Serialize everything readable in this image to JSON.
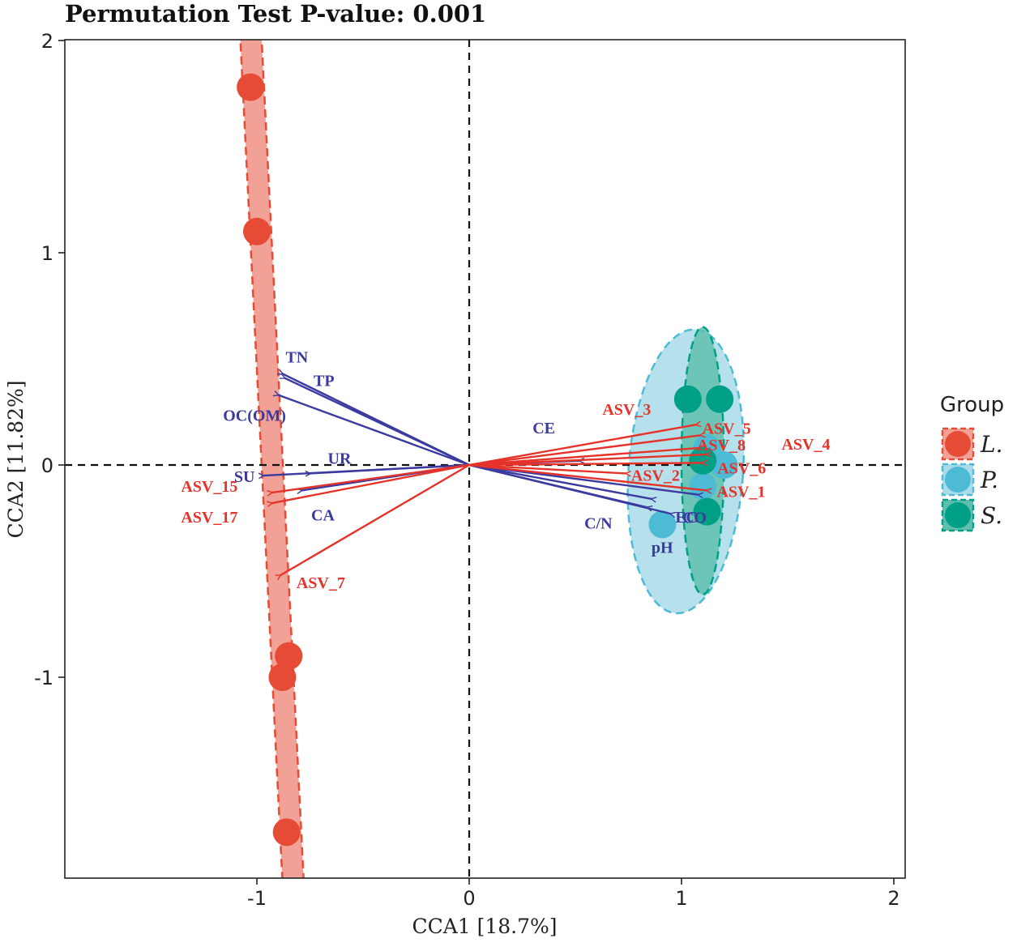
{
  "chart_data": {
    "type": "scatter",
    "title": "Permutation Test P-value: 0.001",
    "xlabel": "CCA1 [18.7%]",
    "ylabel": "CCA2 [11.82%]",
    "xlim": [
      -1.9,
      2.05
    ],
    "ylim": [
      -1.95,
      2.0
    ],
    "xticks": [
      -1,
      0,
      1,
      2
    ],
    "xtick_labels": [
      "-1",
      "0",
      "1",
      "2"
    ],
    "yticks": [
      -1,
      0,
      1,
      2
    ],
    "ytick_labels": [
      "-1",
      "0",
      "1",
      "2"
    ],
    "legend": {
      "title": "Group",
      "position": "right",
      "entries": [
        {
          "label": "L.",
          "color": "#e64b35"
        },
        {
          "label": "P.",
          "color": "#4dbbd5"
        },
        {
          "label": "S.",
          "color": "#00a087"
        }
      ]
    },
    "groups": [
      {
        "name": "L.",
        "color": "#e64b35",
        "fill": "#f1a195",
        "points": [
          [
            -1.03,
            1.78
          ],
          [
            -1.0,
            1.1
          ],
          [
            -0.85,
            -0.9
          ],
          [
            -0.88,
            -1.0
          ],
          [
            -0.86,
            -1.73
          ]
        ]
      },
      {
        "name": "P.",
        "color": "#4dbbd5",
        "fill": "#a9dbe8",
        "points": [
          [
            0.91,
            -0.28
          ],
          [
            1.1,
            -0.1
          ],
          [
            1.2,
            0.0
          ],
          [
            1.12,
            0.08
          ]
        ]
      },
      {
        "name": "S.",
        "color": "#00a087",
        "fill": "#5fbfae",
        "points": [
          [
            1.03,
            0.31
          ],
          [
            1.18,
            0.31
          ],
          [
            1.1,
            0.02
          ],
          [
            1.12,
            -0.22
          ]
        ]
      }
    ],
    "ellipses": [
      {
        "group": "L.",
        "type": "band",
        "from": [
          -1.03,
          2.05
        ],
        "to": [
          -0.83,
          -1.95
        ],
        "half_width": 0.05
      },
      {
        "group": "P.",
        "center": [
          1.02,
          -0.03
        ],
        "rx": 0.27,
        "ry": 0.67,
        "angle": 4
      },
      {
        "group": "S.",
        "center": [
          1.1,
          0.02
        ],
        "rx": 0.1,
        "ry": 0.63,
        "angle": 0
      }
    ],
    "env_vectors": [
      {
        "label": "TN",
        "x": -0.88,
        "y": 0.43
      },
      {
        "label": "TP",
        "x": -0.87,
        "y": 0.41
      },
      {
        "label": "OC(OM)",
        "x": -0.9,
        "y": 0.33
      },
      {
        "label": "UR",
        "x": -0.75,
        "y": -0.04
      },
      {
        "label": "SU",
        "x": -0.97,
        "y": -0.05
      },
      {
        "label": "CA",
        "x": -0.79,
        "y": -0.12
      },
      {
        "label": "CE",
        "x": 0.52,
        "y": 0.02
      },
      {
        "label": "C/N",
        "x": 0.84,
        "y": -0.2
      },
      {
        "label": "EC",
        "x": 0.86,
        "y": -0.16
      },
      {
        "label": "CO",
        "x": 1.08,
        "y": -0.14
      },
      {
        "label": "pH",
        "x": 0.95,
        "y": -0.23
      }
    ],
    "species_vectors": [
      {
        "label": "ASV_3",
        "x": 1.07,
        "y": 0.19
      },
      {
        "label": "ASV_5",
        "x": 1.09,
        "y": 0.14
      },
      {
        "label": "ASV_8",
        "x": 1.08,
        "y": 0.08
      },
      {
        "label": "ASV_4",
        "x": 1.12,
        "y": 0.05
      },
      {
        "label": "ASV_6",
        "x": 1.1,
        "y": 0.01
      },
      {
        "label": "ASV_2",
        "x": 0.74,
        "y": -0.04
      },
      {
        "label": "ASV_1",
        "x": 1.12,
        "y": -0.12
      },
      {
        "label": "ASV_15",
        "x": -0.93,
        "y": -0.13
      },
      {
        "label": "ASV_17",
        "x": -0.93,
        "y": -0.18
      },
      {
        "label": "ASV_7",
        "x": -0.89,
        "y": -0.52
      }
    ]
  },
  "colors": {
    "env_arrow": "#3a3aa0",
    "species_arrow": "#e6332a",
    "axis": "#222222"
  }
}
